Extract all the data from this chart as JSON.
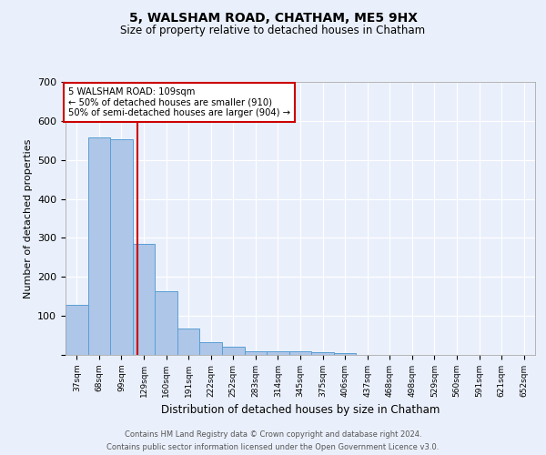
{
  "title1": "5, WALSHAM ROAD, CHATHAM, ME5 9HX",
  "title2": "Size of property relative to detached houses in Chatham",
  "xlabel": "Distribution of detached houses by size in Chatham",
  "ylabel": "Number of detached properties",
  "footer1": "Contains HM Land Registry data © Crown copyright and database right 2024.",
  "footer2": "Contains public sector information licensed under the Open Government Licence v3.0.",
  "bar_labels": [
    "37sqm",
    "68sqm",
    "99sqm",
    "129sqm",
    "160sqm",
    "191sqm",
    "222sqm",
    "252sqm",
    "283sqm",
    "314sqm",
    "345sqm",
    "375sqm",
    "406sqm",
    "437sqm",
    "468sqm",
    "498sqm",
    "529sqm",
    "560sqm",
    "591sqm",
    "621sqm",
    "652sqm"
  ],
  "bar_values": [
    128,
    558,
    553,
    284,
    163,
    68,
    33,
    20,
    9,
    10,
    10,
    8,
    5,
    0,
    0,
    0,
    0,
    0,
    0,
    0,
    0
  ],
  "bar_color": "#aec6e8",
  "bar_edge_color": "#5a9fd4",
  "background_color": "#eaf0fb",
  "grid_color": "#ffffff",
  "vline_x": 2.72,
  "vline_color": "#cc0000",
  "annotation_text": "5 WALSHAM ROAD: 109sqm\n← 50% of detached houses are smaller (910)\n50% of semi-detached houses are larger (904) →",
  "annotation_box_color": "#ffffff",
  "annotation_box_edge": "#cc0000",
  "ylim": [
    0,
    700
  ],
  "yticks": [
    0,
    100,
    200,
    300,
    400,
    500,
    600,
    700
  ]
}
